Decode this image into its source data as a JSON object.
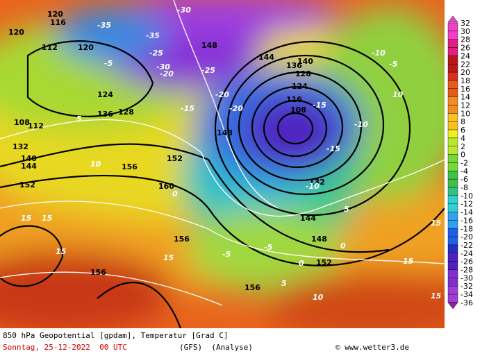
{
  "colorbar": {
    "labels": [
      32,
      30,
      28,
      26,
      24,
      22,
      20,
      18,
      16,
      14,
      12,
      10,
      8,
      6,
      4,
      2,
      0,
      -2,
      -4,
      -6,
      -8,
      -10,
      -12,
      -14,
      -16,
      -18,
      -20,
      -22,
      -24,
      -26,
      -28,
      -30,
      -32,
      -34,
      -36
    ]
  },
  "caption": {
    "line1": "850 hPa Geopotential [gpdam], Temperatur [Grad C]",
    "date": "Sonntag, 25-12-2022  00 UTC",
    "model": "(GFS)  (Analyse)",
    "credit": "© www.wetter3.de"
  },
  "contour_labels": [
    "120",
    "116",
    "112",
    "124",
    "128",
    "132",
    "136",
    "140",
    "144",
    "148",
    "152",
    "156",
    "160",
    "108",
    "-5",
    "-10",
    "-15",
    "-20",
    "-25",
    "-30",
    "-35",
    "0",
    "5",
    "10",
    "15"
  ]
}
